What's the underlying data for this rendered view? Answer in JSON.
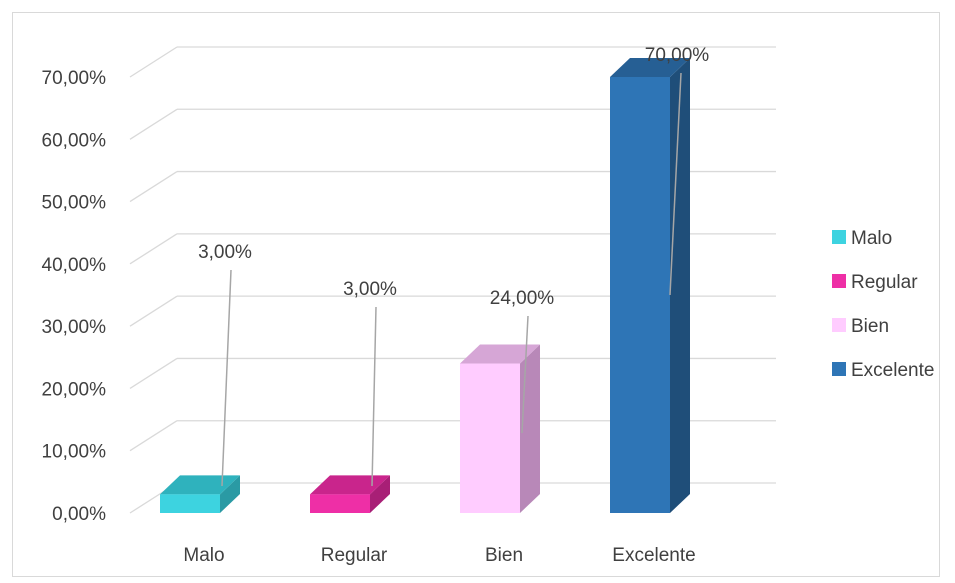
{
  "chart_data": {
    "type": "bar",
    "three_d": true,
    "title": "",
    "xlabel": "",
    "ylabel": "",
    "categories": [
      "Malo",
      "Regular",
      "Bien",
      "Excelente"
    ],
    "values": [
      3.0,
      3.0,
      24.0,
      70.0
    ],
    "value_labels": [
      "3,00%",
      "3,00%",
      "24,00%",
      "70,00%"
    ],
    "ylim": [
      0,
      70
    ],
    "yticks": [
      0,
      10,
      20,
      30,
      40,
      50,
      60,
      70
    ],
    "ytick_labels": [
      "0,00%",
      "10,00%",
      "20,00%",
      "30,00%",
      "40,00%",
      "50,00%",
      "60,00%",
      "70,00%"
    ],
    "grid": true,
    "legend": {
      "position": "right",
      "entries": [
        "Malo",
        "Regular",
        "Bien",
        "Excelente"
      ]
    },
    "colors": {
      "Malo": {
        "front": "#3dd3e0",
        "side": "#2a9aa4",
        "top": "#2fb2bd"
      },
      "Regular": {
        "front": "#ee2fa6",
        "side": "#a81f76",
        "top": "#c9258c"
      },
      "Bien": {
        "front": "#ffccff",
        "side": "#b888b8",
        "top": "#d6a6d6"
      },
      "Excelente": {
        "front": "#2e75b6",
        "side": "#1f4e79",
        "top": "#265f94"
      }
    }
  }
}
